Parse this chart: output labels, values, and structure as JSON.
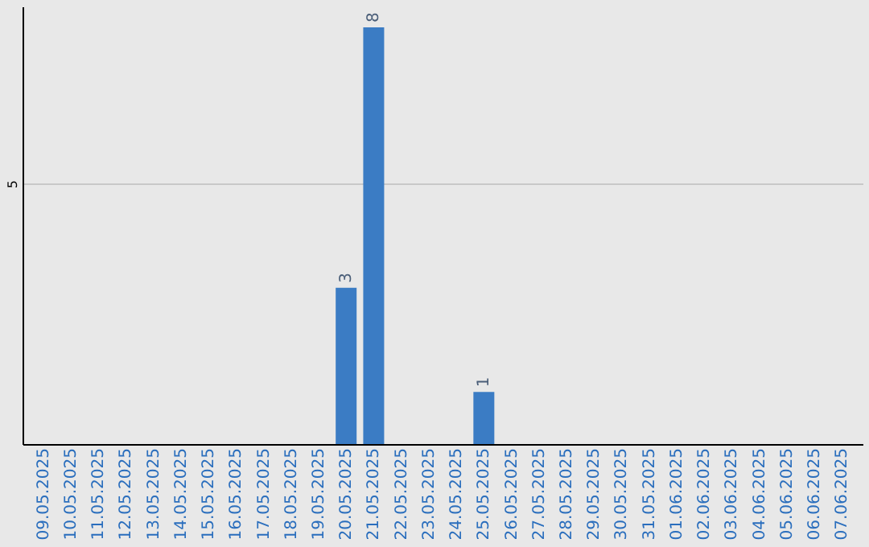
{
  "chart_data": {
    "type": "bar",
    "categories": [
      "09.05.2025",
      "10.05.2025",
      "11.05.2025",
      "12.05.2025",
      "13.05.2025",
      "14.05.2025",
      "15.05.2025",
      "16.05.2025",
      "17.05.2025",
      "18.05.2025",
      "19.05.2025",
      "20.05.2025",
      "21.05.2025",
      "22.05.2025",
      "23.05.2025",
      "24.05.2025",
      "25.05.2025",
      "26.05.2025",
      "27.05.2025",
      "28.05.2025",
      "29.05.2025",
      "30.05.2025",
      "31.05.2025",
      "01.06.2025",
      "02.06.2025",
      "03.06.2025",
      "04.06.2025",
      "05.06.2025",
      "06.06.2025",
      "07.06.2025"
    ],
    "values": [
      0,
      0,
      0,
      0,
      0,
      0,
      0,
      0,
      0,
      0,
      0,
      3,
      8,
      0,
      0,
      0,
      1,
      0,
      0,
      0,
      0,
      0,
      0,
      0,
      0,
      0,
      0,
      0,
      0,
      0
    ],
    "value_labels": [
      null,
      null,
      null,
      null,
      null,
      null,
      null,
      null,
      null,
      null,
      null,
      "3",
      "8",
      null,
      null,
      null,
      "1",
      null,
      null,
      null,
      null,
      null,
      null,
      null,
      null,
      null,
      null,
      null,
      null,
      null
    ],
    "color": "#3b7cc4",
    "ylim": [
      0,
      8.4
    ],
    "yticks": [
      5
    ],
    "grid": "y"
  }
}
